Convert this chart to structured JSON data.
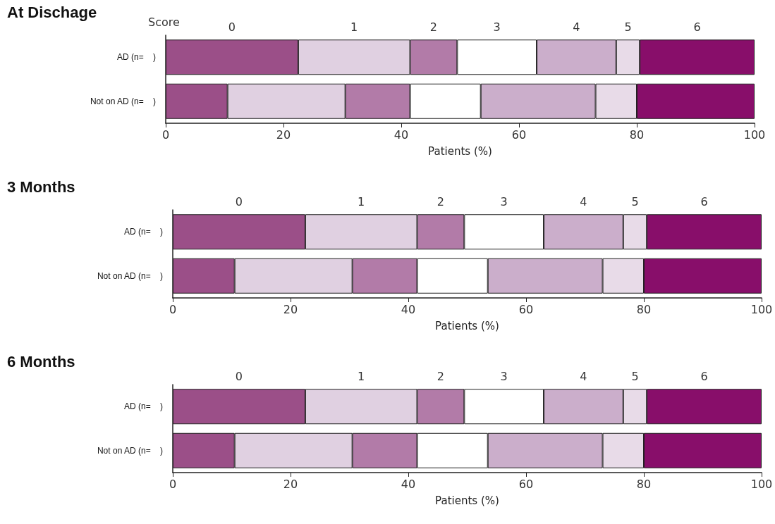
{
  "chart_data": [
    {
      "type": "bar",
      "orientation": "horizontal",
      "stacked": true,
      "title": "At Dischage",
      "xlabel": "Patients (%)",
      "annotations": [
        "Score"
      ],
      "categories": [
        "AD (n=    )",
        "Not on AD (n=    )"
      ],
      "xlim": [
        0,
        100
      ],
      "xticks": [
        0,
        20,
        40,
        60,
        80,
        100
      ],
      "series": [
        {
          "name": "0",
          "color": "#9b4f88",
          "values": [
            22.5,
            10.5
          ]
        },
        {
          "name": "1",
          "color": "#e0d0e1",
          "values": [
            19,
            20
          ]
        },
        {
          "name": "2",
          "color": "#b27ba8",
          "values": [
            8,
            11
          ]
        },
        {
          "name": "3",
          "color": "#ffffff",
          "values": [
            13.5,
            12
          ]
        },
        {
          "name": "4",
          "color": "#cbaecb",
          "values": [
            13.5,
            19.5
          ]
        },
        {
          "name": "5",
          "color": "#e8dbe8",
          "values": [
            4,
            7
          ]
        },
        {
          "name": "6",
          "color": "#880e6a",
          "values": [
            19.5,
            20
          ]
        }
      ]
    },
    {
      "type": "bar",
      "orientation": "horizontal",
      "stacked": true,
      "title": "3 Months",
      "xlabel": "Patients (%)",
      "categories": [
        "AD (n=    )",
        "Not on AD (n=    )"
      ],
      "xlim": [
        0,
        100
      ],
      "xticks": [
        0,
        20,
        40,
        60,
        80,
        100
      ],
      "series": [
        {
          "name": "0",
          "color": "#9b4f88",
          "values": [
            22.5,
            10.5
          ]
        },
        {
          "name": "1",
          "color": "#e0d0e1",
          "values": [
            19,
            20
          ]
        },
        {
          "name": "2",
          "color": "#b27ba8",
          "values": [
            8,
            11
          ]
        },
        {
          "name": "3",
          "color": "#ffffff",
          "values": [
            13.5,
            12
          ]
        },
        {
          "name": "4",
          "color": "#cbaecb",
          "values": [
            13.5,
            19.5
          ]
        },
        {
          "name": "5",
          "color": "#e8dbe8",
          "values": [
            4,
            7
          ]
        },
        {
          "name": "6",
          "color": "#880e6a",
          "values": [
            19.5,
            20
          ]
        }
      ]
    },
    {
      "type": "bar",
      "orientation": "horizontal",
      "stacked": true,
      "title": "6 Months",
      "xlabel": "Patients (%)",
      "categories": [
        "AD (n=    )",
        "Not on AD (n=    )"
      ],
      "xlim": [
        0,
        100
      ],
      "xticks": [
        0,
        20,
        40,
        60,
        80,
        100
      ],
      "series": [
        {
          "name": "0",
          "color": "#9b4f88",
          "values": [
            22.5,
            10.5
          ]
        },
        {
          "name": "1",
          "color": "#e0d0e1",
          "values": [
            19,
            20
          ]
        },
        {
          "name": "2",
          "color": "#b27ba8",
          "values": [
            8,
            11
          ]
        },
        {
          "name": "3",
          "color": "#ffffff",
          "values": [
            13.5,
            12
          ]
        },
        {
          "name": "4",
          "color": "#cbaecb",
          "values": [
            13.5,
            19.5
          ]
        },
        {
          "name": "5",
          "color": "#e8dbe8",
          "values": [
            4,
            7
          ]
        },
        {
          "name": "6",
          "color": "#880e6a",
          "values": [
            19.5,
            20
          ]
        }
      ]
    }
  ]
}
